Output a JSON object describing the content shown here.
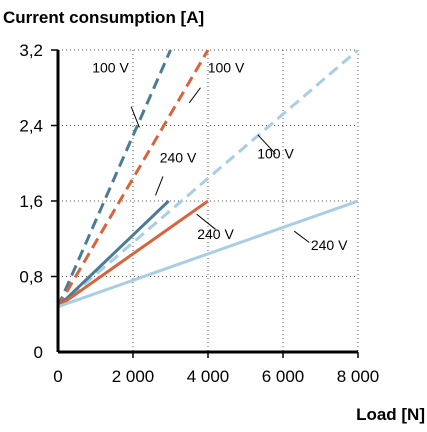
{
  "chart_data": {
    "type": "line",
    "title": "Current consumption [A]",
    "xlabel": "Load [N]",
    "ylabel": "",
    "xlim": [
      0,
      8000
    ],
    "ylim": [
      0,
      3.2
    ],
    "x_ticks": [
      {
        "value": 0,
        "label": "0"
      },
      {
        "value": 2000,
        "label": "2 000"
      },
      {
        "value": 4000,
        "label": "4 000"
      },
      {
        "value": 6000,
        "label": "6 000"
      },
      {
        "value": 8000,
        "label": "8 000"
      }
    ],
    "y_ticks": [
      {
        "value": 0,
        "label": "0"
      },
      {
        "value": 0.8,
        "label": "0,8"
      },
      {
        "value": 1.6,
        "label": "1,6"
      },
      {
        "value": 2.4,
        "label": "2,4"
      },
      {
        "value": 3.2,
        "label": "3,2"
      }
    ],
    "grid": true,
    "grid_style": "dotted",
    "colors": {
      "dark_blue": "#4a7c96",
      "orange": "#d8643e",
      "light_blue": "#a9cde3",
      "grid": "#555555"
    },
    "series": [
      {
        "name": "",
        "color": "#4a7c96",
        "dashed": true,
        "points": [
          [
            0,
            0.48
          ],
          [
            3000,
            3.2
          ]
        ]
      },
      {
        "name": "",
        "color": "#d8643e",
        "dashed": true,
        "points": [
          [
            0,
            0.48
          ],
          [
            4000,
            3.2
          ]
        ]
      },
      {
        "name": "",
        "color": "#a9cde3",
        "dashed": true,
        "points": [
          [
            0,
            0.48
          ],
          [
            8000,
            3.2
          ]
        ]
      },
      {
        "name": "",
        "color": "#4a7c96",
        "dashed": false,
        "points": [
          [
            0,
            0.48
          ],
          [
            2950,
            1.6
          ]
        ]
      },
      {
        "name": "",
        "color": "#d8643e",
        "dashed": false,
        "points": [
          [
            0,
            0.48
          ],
          [
            4000,
            1.6
          ]
        ]
      },
      {
        "name": "",
        "color": "#a9cde3",
        "dashed": false,
        "points": [
          [
            0,
            0.48
          ],
          [
            8000,
            1.6
          ]
        ]
      }
    ],
    "annotations": [
      {
        "text": "100 V",
        "x": 1400,
        "y": 2.96,
        "pointer": [
          [
            1950,
            2.6
          ],
          [
            2170,
            2.38
          ]
        ]
      },
      {
        "text": "100 V",
        "x": 4480,
        "y": 2.96,
        "pointer": [
          [
            3800,
            2.8
          ],
          [
            3500,
            2.64
          ]
        ]
      },
      {
        "text": "100 V",
        "x": 5800,
        "y": 2.05,
        "pointer": [
          [
            5330,
            2.3
          ],
          [
            5800,
            2.1
          ]
        ]
      },
      {
        "text": "240 V",
        "x": 3200,
        "y": 2.01,
        "pointer": [
          [
            2800,
            1.86
          ],
          [
            2600,
            1.66
          ]
        ]
      },
      {
        "text": "240 V",
        "x": 4200,
        "y": 1.2,
        "pointer": [
          [
            3700,
            1.46
          ],
          [
            4200,
            1.3
          ]
        ]
      },
      {
        "text": "240 V",
        "x": 7230,
        "y": 1.08,
        "pointer": [
          [
            6300,
            1.28
          ],
          [
            6700,
            1.16
          ]
        ]
      }
    ]
  }
}
